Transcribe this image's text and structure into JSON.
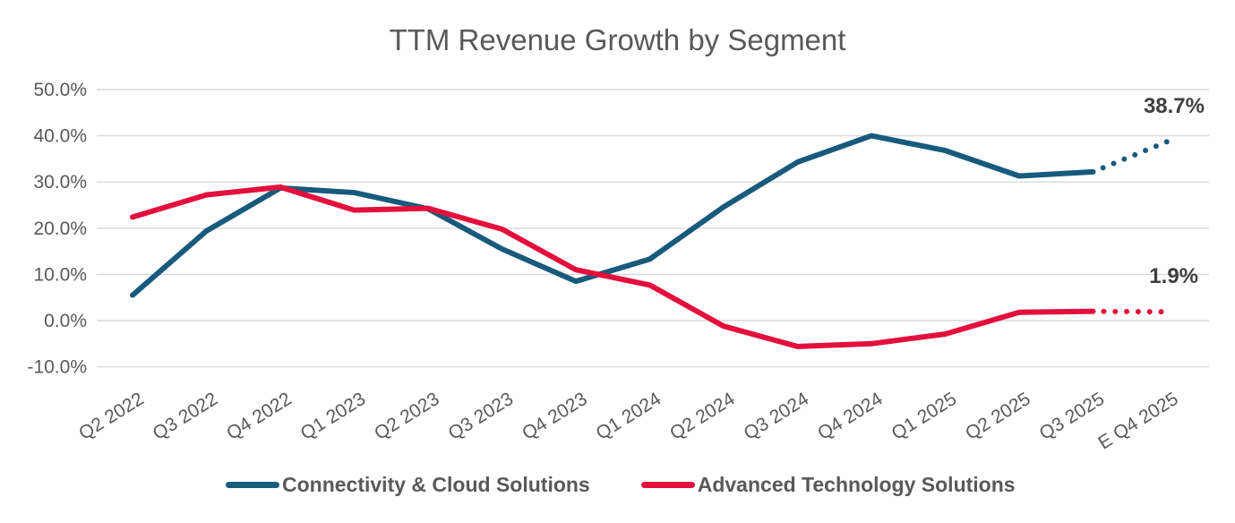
{
  "chart_data": {
    "type": "line",
    "title": "TTM Revenue Growth by Segment",
    "categories": [
      "Q2 2022",
      "Q3 2022",
      "Q4 2022",
      "Q1 2023",
      "Q2 2023",
      "Q3 2023",
      "Q4 2023",
      "Q1 2024",
      "Q2 2024",
      "Q3 2024",
      "Q4 2024",
      "Q1 2025",
      "Q2 2025",
      "Q3 2025",
      "E Q4 2025"
    ],
    "series": [
      {
        "name": "Connectivity & Cloud Solutions",
        "color": "#175A7C",
        "values": [
          5.5,
          19.4,
          28.7,
          27.7,
          24.2,
          15.5,
          8.5,
          13.3,
          24.6,
          34.3,
          40.0,
          36.8,
          31.3,
          32.2,
          38.7
        ],
        "final_label": "38.7%"
      },
      {
        "name": "Advanced Technology Solutions",
        "color": "#E30F3C",
        "values": [
          22.4,
          27.2,
          28.9,
          23.9,
          24.3,
          19.8,
          11.0,
          7.7,
          -1.2,
          -5.6,
          -5.0,
          -2.9,
          1.8,
          2.0,
          1.9
        ],
        "final_label": "1.9%"
      }
    ],
    "last_segment_dotted": true,
    "yticks": {
      "values": [
        50,
        40,
        30,
        20,
        10,
        0,
        -10
      ],
      "labels": [
        "50.0%",
        "40.0%",
        "30.0%",
        "20.0%",
        "10.0%",
        "0.0%",
        "-10.0%"
      ]
    },
    "ylim": [
      -10,
      50
    ],
    "grid": "horizontal",
    "legend_position": "bottom",
    "gridline_color": "#d9d9d9",
    "axis_text_color": "#595959",
    "annotation_text_color": "#3f3f3f"
  }
}
